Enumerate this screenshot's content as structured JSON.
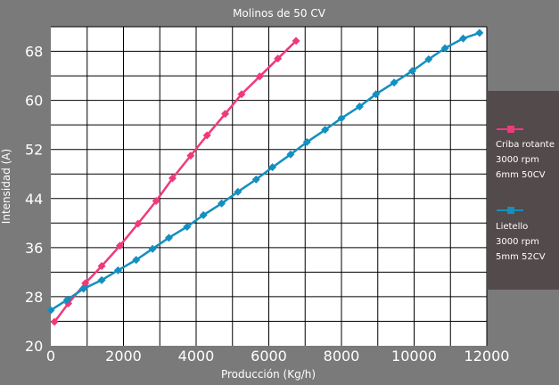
{
  "chart_data": {
    "type": "line",
    "title": "Molinos de 50 CV",
    "xlabel": "Producción (Kg/h)",
    "ylabel": "Intensidad (A)",
    "xlim": [
      0,
      12000
    ],
    "ylim": [
      20,
      72
    ],
    "xticks": [
      0,
      2000,
      4000,
      6000,
      8000,
      10000,
      12000
    ],
    "yticks": [
      20,
      28,
      36,
      44,
      52,
      60,
      68
    ],
    "grid": true,
    "legend_position": "right",
    "colors": {
      "background": "#7a7a7a",
      "plot_area": "#ffffff",
      "grid": "#000000",
      "legend_box": "#534a4b"
    },
    "series": [
      {
        "color": "#ee3a7c",
        "legend_lines": [
          "Criba rotante",
          "3000 rpm",
          "6mm 50CV"
        ],
        "x": [
          100,
          480,
          950,
          1400,
          1900,
          2400,
          2900,
          3350,
          3850,
          4300,
          4800,
          5250,
          5750,
          6250,
          6750
        ],
        "y": [
          23.9,
          26.9,
          30.2,
          33.0,
          36.3,
          39.9,
          43.6,
          47.3,
          51.0,
          54.3,
          57.8,
          61.0,
          63.9,
          66.8,
          69.7
        ]
      },
      {
        "color": "#138fc0",
        "legend_lines": [
          "Lietello",
          "3000 rpm",
          "5mm 52CV"
        ],
        "x": [
          0,
          450,
          900,
          1400,
          1850,
          2350,
          2800,
          3250,
          3750,
          4200,
          4700,
          5150,
          5650,
          6100,
          6600,
          7050,
          7550,
          8000,
          8500,
          8950,
          9450,
          9950,
          10400,
          10850,
          11350,
          11800
        ],
        "y": [
          25.8,
          27.5,
          29.3,
          30.7,
          32.3,
          34.0,
          35.8,
          37.6,
          39.4,
          41.3,
          43.2,
          45.1,
          47.1,
          49.1,
          51.2,
          53.2,
          55.2,
          57.1,
          59.0,
          61.0,
          62.9,
          64.8,
          66.7,
          68.5,
          70.1,
          71.0
        ]
      }
    ]
  }
}
